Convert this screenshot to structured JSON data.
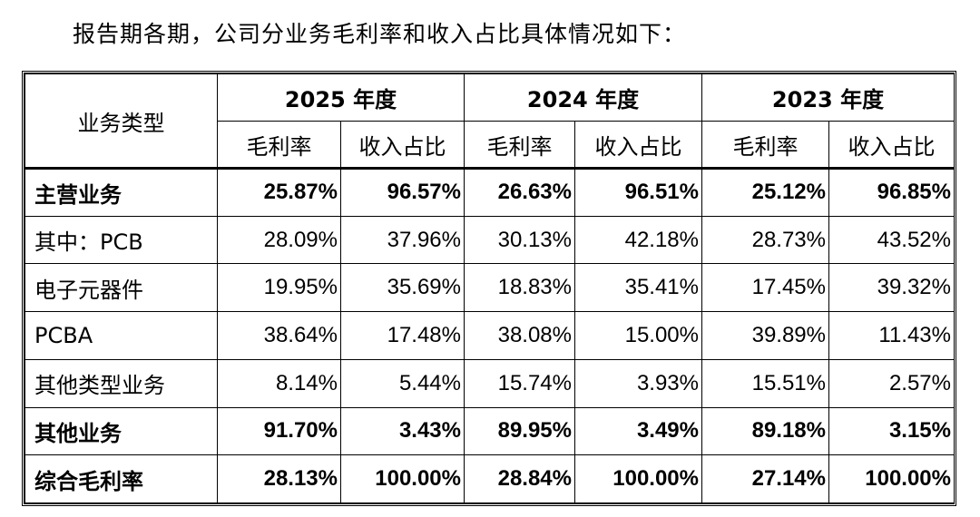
{
  "intro_text": "报告期各期，公司分业务毛利率和收入占比具体情况如下：",
  "table": {
    "type_header": "业务类型",
    "years": [
      "2025 年度",
      "2024 年度",
      "2023 年度"
    ],
    "sub_headers": [
      "毛利率",
      "收入占比"
    ],
    "rows": [
      {
        "label": "主营业务",
        "bold": true,
        "values": [
          "25.87%",
          "96.57%",
          "26.63%",
          "96.51%",
          "25.12%",
          "96.85%"
        ]
      },
      {
        "label": "其中：PCB",
        "bold": false,
        "values": [
          "28.09%",
          "37.96%",
          "30.13%",
          "42.18%",
          "28.73%",
          "43.52%"
        ]
      },
      {
        "label": "电子元器件",
        "bold": false,
        "values": [
          "19.95%",
          "35.69%",
          "18.83%",
          "35.41%",
          "17.45%",
          "39.32%"
        ]
      },
      {
        "label": "PCBA",
        "bold": false,
        "values": [
          "38.64%",
          "17.48%",
          "38.08%",
          "15.00%",
          "39.89%",
          "11.43%"
        ]
      },
      {
        "label": "其他类型业务",
        "bold": false,
        "values": [
          "8.14%",
          "5.44%",
          "15.74%",
          "3.93%",
          "15.51%",
          "2.57%"
        ]
      },
      {
        "label": "其他业务",
        "bold": true,
        "values": [
          "91.70%",
          "3.43%",
          "89.95%",
          "3.49%",
          "89.18%",
          "3.15%"
        ]
      },
      {
        "label": "综合毛利率",
        "bold": true,
        "values": [
          "28.13%",
          "100.00%",
          "28.84%",
          "100.00%",
          "27.14%",
          "100.00%"
        ]
      }
    ]
  }
}
